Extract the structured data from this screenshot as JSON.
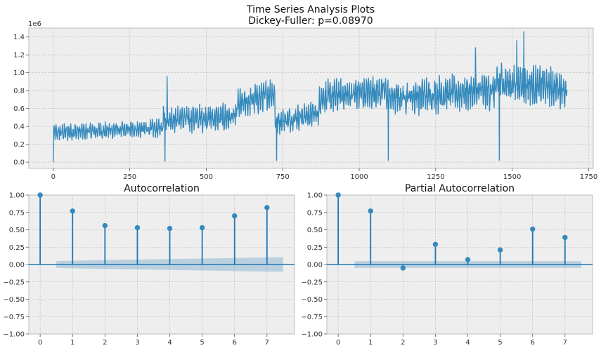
{
  "chart_data": [
    {
      "type": "line",
      "title": "Time Series Analysis Plots\nDickey-Fuller: p=0.08970",
      "title_lines": [
        "Time Series Analysis Plots",
        "Dickey-Fuller: p=0.08970"
      ],
      "offset_text": "1e6",
      "xlim": [
        -80,
        1765
      ],
      "ylim": [
        -0.07,
        1.5
      ],
      "xticks": [
        0,
        250,
        500,
        750,
        1000,
        1250,
        1500,
        1750
      ],
      "yticks": [
        0.0,
        0.2,
        0.4,
        0.6,
        0.8,
        1.0,
        1.2,
        1.4
      ],
      "xtick_labels": [
        "0",
        "250",
        "500",
        "750",
        "1000",
        "1250",
        "1500",
        "1750"
      ],
      "ytick_labels": [
        "0.0",
        "0.2",
        "0.4",
        "0.6",
        "0.8",
        "1.0",
        "1.2",
        "1.4"
      ],
      "grid": true,
      "series_color": "#348abd",
      "n_points": 1680,
      "segments": [
        {
          "x": [
            0,
            360
          ],
          "base": [
            0.33,
            0.38
          ],
          "amp": 0.09
        },
        {
          "x": [
            360,
            365
          ],
          "base": [
            0.58,
            0.58
          ],
          "amp": 0.12
        },
        {
          "x": [
            365,
            600
          ],
          "base": [
            0.48,
            0.5
          ],
          "amp": 0.14
        },
        {
          "x": [
            600,
            725
          ],
          "base": [
            0.63,
            0.78
          ],
          "amp": 0.16
        },
        {
          "x": [
            725,
            870
          ],
          "base": [
            0.45,
            0.55
          ],
          "amp": 0.13
        },
        {
          "x": [
            870,
            1090
          ],
          "base": [
            0.72,
            0.8
          ],
          "amp": 0.17
        },
        {
          "x": [
            1090,
            1450
          ],
          "base": [
            0.72,
            0.8
          ],
          "amp": 0.19
        },
        {
          "x": [
            1450,
            1680
          ],
          "base": [
            0.9,
            0.82
          ],
          "amp": 0.2
        }
      ],
      "outliers": [
        {
          "x": 0,
          "y": 0.0
        },
        {
          "x": 365,
          "y": 0.01
        },
        {
          "x": 730,
          "y": 0.02
        },
        {
          "x": 1095,
          "y": 0.02
        },
        {
          "x": 1458,
          "y": 0.02
        }
      ],
      "peaks": [
        {
          "x": 372,
          "y": 0.96
        },
        {
          "x": 1380,
          "y": 1.28
        },
        {
          "x": 1538,
          "y": 1.46
        },
        {
          "x": 1515,
          "y": 1.36
        }
      ]
    },
    {
      "type": "stem",
      "title": "Autocorrelation",
      "lags": [
        0,
        1,
        2,
        3,
        4,
        5,
        6,
        7
      ],
      "values": [
        1.0,
        0.77,
        0.56,
        0.53,
        0.52,
        0.53,
        0.7,
        0.82
      ],
      "conf_upper": [
        0.05,
        0.06,
        0.068,
        0.075,
        0.082,
        0.09,
        0.098,
        0.105
      ],
      "conf_x": [
        0.5,
        7.5
      ],
      "xlim": [
        -0.35,
        7.85
      ],
      "ylim": [
        -1.0,
        1.0
      ],
      "xticks": [
        0,
        1,
        2,
        3,
        4,
        5,
        6,
        7
      ],
      "yticks": [
        -1.0,
        -0.75,
        -0.5,
        -0.25,
        0.0,
        0.25,
        0.5,
        0.75,
        1.0
      ],
      "xtick_labels": [
        "0",
        "1",
        "2",
        "3",
        "4",
        "5",
        "6",
        "7"
      ],
      "ytick_labels": [
        "−1.00",
        "−0.75",
        "−0.50",
        "−0.25",
        "0.00",
        "0.25",
        "0.50",
        "0.75",
        "1.00"
      ],
      "grid": true
    },
    {
      "type": "stem",
      "title": "Partial Autocorrelation",
      "lags": [
        0,
        1,
        2,
        3,
        4,
        5,
        6,
        7
      ],
      "values": [
        1.0,
        0.77,
        -0.05,
        0.29,
        0.07,
        0.21,
        0.51,
        0.39
      ],
      "conf_upper": [
        0.05,
        0.05,
        0.05,
        0.05,
        0.05,
        0.05,
        0.05,
        0.05
      ],
      "conf_x": [
        0.5,
        7.5
      ],
      "xlim": [
        -0.35,
        7.85
      ],
      "ylim": [
        -1.0,
        1.0
      ],
      "xticks": [
        0,
        1,
        2,
        3,
        4,
        5,
        6,
        7
      ],
      "yticks": [
        -1.0,
        -0.75,
        -0.5,
        -0.25,
        0.0,
        0.25,
        0.5,
        0.75,
        1.0
      ],
      "xtick_labels": [
        "0",
        "1",
        "2",
        "3",
        "4",
        "5",
        "6",
        "7"
      ],
      "ytick_labels": [
        "−1.00",
        "−0.75",
        "−0.50",
        "−0.25",
        "0.00",
        "0.25",
        "0.50",
        "0.75",
        "1.00"
      ],
      "grid": true
    }
  ]
}
